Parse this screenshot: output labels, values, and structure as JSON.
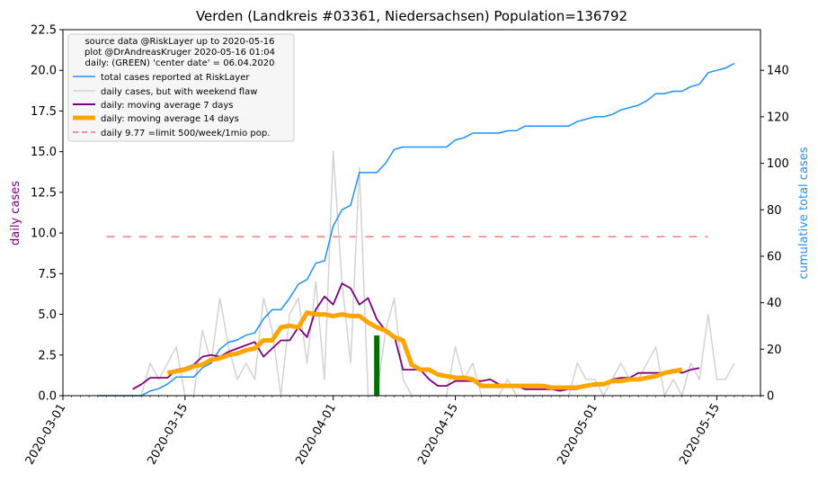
{
  "chart_data": {
    "type": "line",
    "title": "Verden (Landkreis #03361, Niedersachsen) Population=136792",
    "ylabel_left": "daily cases",
    "ylabel_right": "cumulative total cases",
    "start_date": "2020-03-01",
    "x_range_days": [
      0,
      80
    ],
    "xticks": [
      {
        "label": "2020-03-01",
        "day": 0
      },
      {
        "label": "2020-03-15",
        "day": 14
      },
      {
        "label": "2020-04-01",
        "day": 31
      },
      {
        "label": "2020-04-15",
        "day": 45
      },
      {
        "label": "2020-05-01",
        "day": 61
      },
      {
        "label": "2020-05-15",
        "day": 75
      }
    ],
    "ylim_left": [
      0,
      22.5
    ],
    "yticks_left": [
      "0.0",
      "2.5",
      "5.0",
      "7.5",
      "10.0",
      "12.5",
      "15.0",
      "17.5",
      "20.0",
      "22.5"
    ],
    "ylim_right": [
      0,
      157.5
    ],
    "yticks_right": [
      "0",
      "20",
      "40",
      "60",
      "80",
      "100",
      "120",
      "140"
    ],
    "source_text": [
      "source data @RiskLayer up to 2020-05-16",
      "plot @DrAndreasKruger 2020-05-16 01:04",
      "daily: (GREEN) 'center date' = 06.04.2020"
    ],
    "legend": [
      {
        "label": "total cases reported at RiskLayer",
        "color": "#1e90ff",
        "style": "line"
      },
      {
        "label": "daily cases, but with weekend flaw",
        "color": "#d3d3d3",
        "style": "line"
      },
      {
        "label": "daily: moving average 7 days",
        "color": "#800080",
        "style": "line"
      },
      {
        "label": "daily: moving average 14 days",
        "color": "#ffa500",
        "style": "thick"
      },
      {
        "label": "daily 9.77 =limit 500/week/1mio pop.",
        "color": "#ff6b6b",
        "style": "dashed"
      }
    ],
    "limit_value": 9.77,
    "limit_x_range": [
      5,
      74
    ],
    "center_date_day": 36,
    "center_bar_value": 3.7,
    "series": [
      {
        "name": "total cases reported at RiskLayer",
        "axis": "right",
        "color": "#1e90ff",
        "x": [
          4,
          5,
          6,
          7,
          8,
          9,
          10,
          11,
          12,
          13,
          14,
          15,
          16,
          17,
          18,
          19,
          20,
          21,
          22,
          23,
          24,
          25,
          26,
          27,
          28,
          29,
          30,
          31,
          32,
          33,
          34,
          35,
          36,
          37,
          38,
          39,
          40,
          41,
          42,
          43,
          44,
          45,
          46,
          47,
          48,
          49,
          50,
          51,
          52,
          53,
          54,
          55,
          56,
          57,
          58,
          59,
          60,
          61,
          62,
          63,
          64,
          65,
          66,
          67,
          68,
          69,
          70,
          71,
          72,
          73,
          74,
          75,
          76,
          77
        ],
        "values": [
          0,
          0,
          0,
          0,
          0,
          0,
          2,
          3,
          5,
          8,
          8,
          8,
          12,
          14,
          20,
          23,
          24,
          26,
          27,
          33,
          37,
          37,
          42,
          48,
          50,
          57,
          58,
          73,
          80,
          82,
          96,
          96,
          96,
          100,
          106,
          107,
          107,
          107,
          107,
          107,
          107,
          110,
          111,
          113,
          113,
          113,
          113,
          114,
          114,
          116,
          116,
          116,
          116,
          116,
          116,
          118,
          119,
          120,
          120,
          121,
          123,
          124,
          125,
          127,
          130,
          130,
          131,
          131,
          133,
          134,
          139,
          140,
          141,
          143
        ]
      },
      {
        "name": "daily cases, but with weekend flaw",
        "axis": "left",
        "color": "#d3d3d3",
        "x": [
          4,
          5,
          6,
          7,
          8,
          9,
          10,
          11,
          12,
          13,
          14,
          15,
          16,
          17,
          18,
          19,
          20,
          21,
          22,
          23,
          24,
          25,
          26,
          27,
          28,
          29,
          30,
          31,
          32,
          33,
          34,
          35,
          36,
          37,
          38,
          39,
          40,
          41,
          42,
          43,
          44,
          45,
          46,
          47,
          48,
          49,
          50,
          51,
          52,
          53,
          54,
          55,
          56,
          57,
          58,
          59,
          60,
          61,
          62,
          63,
          64,
          65,
          66,
          67,
          68,
          69,
          70,
          71,
          72,
          73,
          74,
          75,
          76,
          77
        ],
        "values": [
          0,
          0,
          0,
          0,
          0,
          0,
          2,
          1,
          2,
          3,
          0,
          0,
          4,
          2,
          6,
          3,
          1,
          2,
          1,
          6,
          4,
          0,
          5,
          6,
          2,
          7,
          1,
          15,
          7,
          2,
          14,
          0,
          0,
          4,
          6,
          1,
          0,
          0,
          0,
          0,
          0,
          3,
          1,
          2,
          0,
          0,
          0,
          1,
          0,
          0,
          0,
          0,
          0,
          0,
          0,
          2,
          1,
          1,
          0,
          1,
          2,
          1,
          1,
          2,
          3,
          0,
          1,
          0,
          2,
          1,
          5,
          1,
          1,
          2
        ]
      },
      {
        "name": "daily: moving average 7 days",
        "axis": "left",
        "color": "#800080",
        "x": [
          8,
          9,
          10,
          11,
          12,
          13,
          14,
          15,
          16,
          17,
          18,
          19,
          20,
          21,
          22,
          23,
          24,
          25,
          26,
          27,
          28,
          29,
          30,
          31,
          32,
          33,
          34,
          35,
          36,
          37,
          38,
          39,
          40,
          41,
          42,
          43,
          44,
          45,
          46,
          47,
          48,
          49,
          50,
          51,
          52,
          53,
          54,
          55,
          56,
          57,
          58,
          59,
          60,
          61,
          62,
          63,
          64,
          65,
          66,
          67,
          68,
          69,
          70,
          71,
          72,
          73
        ],
        "values": [
          0.4,
          0.7,
          1.1,
          1.1,
          1.1,
          1.6,
          1.7,
          1.9,
          2.4,
          2.5,
          2.4,
          2.7,
          2.9,
          3.1,
          3.3,
          2.4,
          2.9,
          3.4,
          3.4,
          4.2,
          3.6,
          5.3,
          6.1,
          5.6,
          6.9,
          6.6,
          5.6,
          6.0,
          4.7,
          4.0,
          3.7,
          1.6,
          1.6,
          1.6,
          1.0,
          0.6,
          0.6,
          0.9,
          0.9,
          0.9,
          0.9,
          1.0,
          0.7,
          0.6,
          0.6,
          0.4,
          0.4,
          0.4,
          0.4,
          0.3,
          0.4,
          0.4,
          0.6,
          0.6,
          0.7,
          1.0,
          1.1,
          1.1,
          1.4,
          1.4,
          1.4,
          1.4,
          1.6,
          1.4,
          1.6,
          1.7
        ]
      },
      {
        "name": "daily: moving average 14 days",
        "axis": "left",
        "color": "#ffa500",
        "x": [
          12,
          13,
          14,
          15,
          16,
          17,
          18,
          19,
          20,
          21,
          22,
          23,
          24,
          25,
          26,
          27,
          28,
          29,
          30,
          31,
          32,
          33,
          34,
          35,
          36,
          37,
          38,
          39,
          40,
          41,
          42,
          43,
          44,
          45,
          46,
          47,
          48,
          49,
          50,
          51,
          52,
          53,
          54,
          55,
          56,
          57,
          58,
          59,
          60,
          61,
          62,
          63,
          64,
          65,
          66,
          67,
          68,
          69,
          70,
          71
        ],
        "values": [
          1.4,
          1.5,
          1.6,
          1.8,
          1.9,
          2.2,
          2.3,
          2.5,
          2.6,
          2.8,
          2.9,
          3.4,
          3.4,
          4.2,
          4.3,
          4.2,
          5.1,
          5.0,
          5.0,
          4.9,
          5.0,
          4.9,
          4.9,
          4.5,
          4.2,
          4.0,
          3.6,
          3.4,
          1.9,
          1.6,
          1.6,
          1.3,
          1.2,
          1.1,
          1.1,
          1.0,
          0.6,
          0.6,
          0.6,
          0.6,
          0.6,
          0.6,
          0.6,
          0.6,
          0.5,
          0.5,
          0.5,
          0.5,
          0.6,
          0.7,
          0.7,
          0.9,
          0.9,
          1.0,
          1.0,
          1.1,
          1.2,
          1.4,
          1.5,
          1.6
        ]
      }
    ]
  }
}
